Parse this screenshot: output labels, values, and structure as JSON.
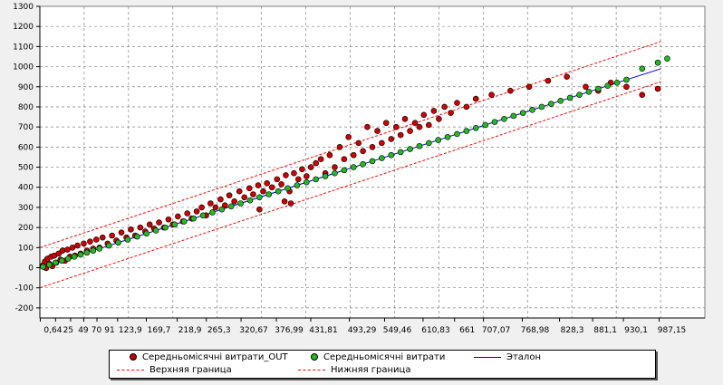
{
  "chart_data": {
    "type": "scatter",
    "title": "",
    "xlabel": "",
    "ylabel": "",
    "ylim": [
      -250,
      1300
    ],
    "y_ticks": [
      -200,
      -100,
      0,
      100,
      200,
      300,
      400,
      500,
      600,
      700,
      800,
      900,
      1000,
      1100,
      1200,
      1300
    ],
    "x_tick_labels": [
      "0,64",
      "25",
      "49",
      "70",
      "91",
      "123,9",
      "169,7",
      "218,9",
      "265,3",
      "320,67",
      "376,99",
      "431,81",
      "493,29",
      "549,46",
      "610,83",
      "661",
      "707,07",
      "768,98",
      "828,3",
      "881,1",
      "930,1",
      "987,15"
    ],
    "x_tick_values": [
      0.64,
      25,
      49,
      70,
      91,
      123.9,
      169.7,
      218.9,
      265.3,
      320.67,
      376.99,
      431.81,
      493.29,
      549.46,
      610.83,
      661,
      707.07,
      768.98,
      828.3,
      881.1,
      930.1,
      987.15
    ],
    "grid": true,
    "legend_placement": "bottom",
    "series": [
      {
        "name": "Середньомісячні витрати_OUT",
        "kind": "points",
        "color": "#cc0000",
        "points": [
          [
            5,
            12
          ],
          [
            8,
            30
          ],
          [
            10,
            -2
          ],
          [
            12,
            45
          ],
          [
            15,
            20
          ],
          [
            18,
            55
          ],
          [
            20,
            8
          ],
          [
            23,
            60
          ],
          [
            26,
            25
          ],
          [
            30,
            70
          ],
          [
            33,
            40
          ],
          [
            36,
            85
          ],
          [
            40,
            35
          ],
          [
            44,
            90
          ],
          [
            48,
            55
          ],
          [
            52,
            100
          ],
          [
            56,
            60
          ],
          [
            60,
            110
          ],
          [
            65,
            70
          ],
          [
            70,
            120
          ],
          [
            75,
            85
          ],
          [
            80,
            130
          ],
          [
            85,
            95
          ],
          [
            90,
            140
          ],
          [
            95,
            100
          ],
          [
            100,
            150
          ],
          [
            108,
            120
          ],
          [
            115,
            160
          ],
          [
            122,
            135
          ],
          [
            130,
            175
          ],
          [
            138,
            150
          ],
          [
            145,
            190
          ],
          [
            152,
            160
          ],
          [
            160,
            200
          ],
          [
            168,
            180
          ],
          [
            175,
            215
          ],
          [
            182,
            195
          ],
          [
            190,
            225
          ],
          [
            198,
            200
          ],
          [
            205,
            240
          ],
          [
            212,
            215
          ],
          [
            220,
            255
          ],
          [
            228,
            230
          ],
          [
            235,
            270
          ],
          [
            242,
            245
          ],
          [
            250,
            280
          ],
          [
            258,
            300
          ],
          [
            265,
            260
          ],
          [
            272,
            320
          ],
          [
            280,
            300
          ],
          [
            288,
            340
          ],
          [
            295,
            310
          ],
          [
            302,
            360
          ],
          [
            310,
            330
          ],
          [
            318,
            380
          ],
          [
            326,
            350
          ],
          [
            334,
            395
          ],
          [
            340,
            365
          ],
          [
            348,
            410
          ],
          [
            356,
            380
          ],
          [
            362,
            420
          ],
          [
            370,
            400
          ],
          [
            378,
            440
          ],
          [
            385,
            415
          ],
          [
            392,
            460
          ],
          [
            398,
            380
          ],
          [
            405,
            470
          ],
          [
            412,
            440
          ],
          [
            418,
            490
          ],
          [
            425,
            455
          ],
          [
            432,
            500
          ],
          [
            440,
            520
          ],
          [
            448,
            540
          ],
          [
            455,
            470
          ],
          [
            462,
            560
          ],
          [
            470,
            500
          ],
          [
            478,
            600
          ],
          [
            485,
            540
          ],
          [
            492,
            650
          ],
          [
            500,
            560
          ],
          [
            508,
            620
          ],
          [
            515,
            580
          ],
          [
            522,
            700
          ],
          [
            530,
            600
          ],
          [
            538,
            680
          ],
          [
            545,
            620
          ],
          [
            552,
            720
          ],
          [
            560,
            640
          ],
          [
            568,
            700
          ],
          [
            575,
            660
          ],
          [
            582,
            740
          ],
          [
            590,
            680
          ],
          [
            598,
            720
          ],
          [
            605,
            700
          ],
          [
            612,
            760
          ],
          [
            620,
            710
          ],
          [
            628,
            780
          ],
          [
            636,
            740
          ],
          [
            645,
            800
          ],
          [
            655,
            770
          ],
          [
            665,
            820
          ],
          [
            680,
            800
          ],
          [
            695,
            840
          ],
          [
            720,
            860
          ],
          [
            750,
            880
          ],
          [
            780,
            900
          ],
          [
            810,
            930
          ],
          [
            840,
            950
          ],
          [
            870,
            900
          ],
          [
            890,
            880
          ],
          [
            910,
            920
          ],
          [
            960,
            860
          ],
          [
            985,
            890
          ],
          [
            935,
            900
          ],
          [
            390,
            330
          ],
          [
            400,
            320
          ],
          [
            350,
            290
          ]
        ]
      },
      {
        "name": "Середньомісячні витрати",
        "kind": "points",
        "color": "#22bb22",
        "points": [
          [
            5,
            5
          ],
          [
            15,
            15
          ],
          [
            25,
            25
          ],
          [
            35,
            35
          ],
          [
            45,
            45
          ],
          [
            55,
            55
          ],
          [
            65,
            65
          ],
          [
            75,
            75
          ],
          [
            85,
            85
          ],
          [
            95,
            95
          ],
          [
            110,
            110
          ],
          [
            125,
            125
          ],
          [
            140,
            140
          ],
          [
            155,
            155
          ],
          [
            170,
            170
          ],
          [
            185,
            185
          ],
          [
            200,
            200
          ],
          [
            215,
            215
          ],
          [
            230,
            230
          ],
          [
            245,
            245
          ],
          [
            260,
            260
          ],
          [
            275,
            275
          ],
          [
            290,
            290
          ],
          [
            305,
            305
          ],
          [
            320,
            320
          ],
          [
            335,
            335
          ],
          [
            350,
            350
          ],
          [
            365,
            365
          ],
          [
            380,
            380
          ],
          [
            395,
            395
          ],
          [
            410,
            410
          ],
          [
            425,
            425
          ],
          [
            440,
            440
          ],
          [
            455,
            455
          ],
          [
            470,
            470
          ],
          [
            485,
            485
          ],
          [
            500,
            500
          ],
          [
            515,
            515
          ],
          [
            530,
            530
          ],
          [
            545,
            545
          ],
          [
            560,
            560
          ],
          [
            575,
            575
          ],
          [
            590,
            590
          ],
          [
            605,
            605
          ],
          [
            620,
            620
          ],
          [
            635,
            635
          ],
          [
            650,
            650
          ],
          [
            665,
            665
          ],
          [
            680,
            680
          ],
          [
            695,
            695
          ],
          [
            710,
            710
          ],
          [
            725,
            725
          ],
          [
            740,
            740
          ],
          [
            755,
            755
          ],
          [
            770,
            770
          ],
          [
            785,
            785
          ],
          [
            800,
            800
          ],
          [
            815,
            815
          ],
          [
            830,
            830
          ],
          [
            845,
            845
          ],
          [
            860,
            860
          ],
          [
            875,
            875
          ],
          [
            890,
            890
          ],
          [
            905,
            905
          ],
          [
            920,
            920
          ],
          [
            935,
            935
          ],
          [
            960,
            990
          ],
          [
            985,
            1020
          ],
          [
            1000,
            1040
          ]
        ]
      },
      {
        "name": "Эталон",
        "kind": "line",
        "color": "#0000cc",
        "points": [
          [
            0,
            0
          ],
          [
            990,
            990
          ]
        ]
      },
      {
        "name": "Верхняя граница",
        "kind": "dashed-line",
        "color": "#ff0000",
        "points": [
          [
            0,
            100
          ],
          [
            990,
            1125
          ]
        ]
      },
      {
        "name": "Нижняя граница",
        "kind": "dashed-line",
        "color": "#ff0000",
        "points": [
          [
            0,
            -100
          ],
          [
            990,
            925
          ]
        ]
      }
    ]
  }
}
